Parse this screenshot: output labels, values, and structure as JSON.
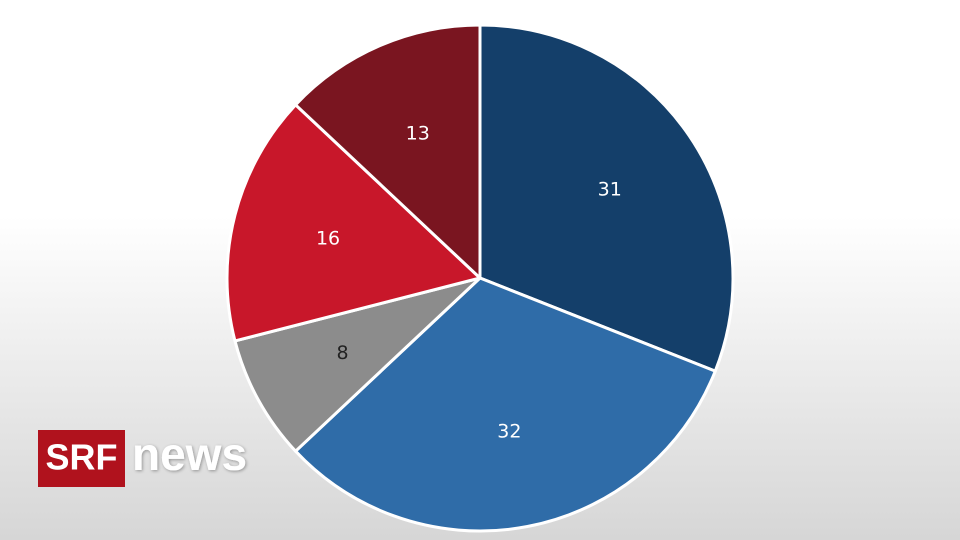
{
  "chart_data": {
    "type": "pie",
    "categories": [
      null,
      null,
      null,
      null,
      null
    ],
    "values": [
      31,
      32,
      8,
      16,
      13
    ],
    "colors": [
      "#143f6a",
      "#2f6ca8",
      "#8c8c8c",
      "#c8172a",
      "#7a1520"
    ]
  },
  "logo": {
    "brand": "SRF",
    "product": "news"
  }
}
